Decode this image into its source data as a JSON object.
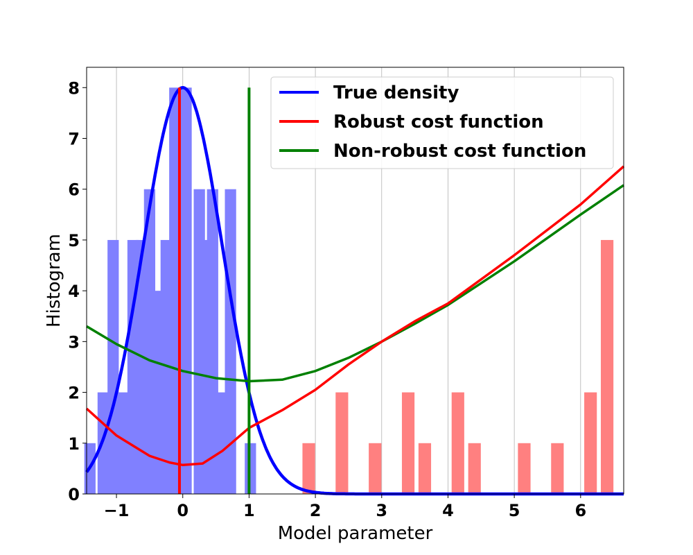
{
  "chart_data": {
    "type": "bar",
    "title": "",
    "xlabel": "Model parameter",
    "ylabel": "Histogram",
    "xlim": [
      -1.45,
      6.65
    ],
    "ylim": [
      0,
      8.4
    ],
    "xticks": [
      -1,
      0,
      1,
      2,
      3,
      4,
      5,
      6
    ],
    "xtick_labels": [
      "−1",
      "0",
      "1",
      "2",
      "3",
      "4",
      "5",
      "6"
    ],
    "yticks": [
      0,
      1,
      2,
      3,
      4,
      5,
      6,
      7,
      8
    ],
    "ytick_labels": [
      "0",
      "1",
      "2",
      "3",
      "4",
      "5",
      "6",
      "7",
      "8"
    ],
    "grid": "vertical",
    "legend_position": "top-right",
    "colors": {
      "inlier_bars": "#8080ff",
      "outlier_bars": "#ff8080",
      "true_density": "#0000ff",
      "robust": "#ff0000",
      "nonrobust": "#008000"
    },
    "histogram_inliers": {
      "bar_width": 0.17,
      "x": [
        -1.4,
        -1.2,
        -1.05,
        -0.9,
        -0.75,
        -0.62,
        -0.5,
        -0.37,
        -0.25,
        -0.12,
        -0.02,
        0.05,
        0.25,
        0.3,
        0.45,
        0.6,
        0.72,
        1.02
      ],
      "values": [
        1,
        2,
        5,
        2,
        5,
        5,
        6,
        4,
        5,
        8,
        6,
        8,
        6,
        5,
        6,
        2,
        6,
        1
      ]
    },
    "histogram_outliers": {
      "bar_width": 0.19,
      "x": [
        1.9,
        2.4,
        2.9,
        3.4,
        3.65,
        4.15,
        4.4,
        5.15,
        5.65,
        6.15,
        6.4
      ],
      "values": [
        1,
        2,
        1,
        2,
        1,
        2,
        1,
        1,
        1,
        2,
        5
      ]
    },
    "true_density": {
      "mean": 0,
      "sigma": 0.6,
      "peak": 8
    },
    "robust_cost": {
      "x": [
        -1.45,
        -1.0,
        -0.5,
        -0.2,
        0.0,
        0.3,
        0.6,
        1.0,
        1.5,
        2.0,
        2.5,
        3.0,
        3.5,
        4.0,
        5.0,
        6.0,
        6.65
      ],
      "y": [
        1.68,
        1.15,
        0.75,
        0.62,
        0.57,
        0.6,
        0.85,
        1.3,
        1.65,
        2.05,
        2.55,
        3.0,
        3.4,
        3.75,
        4.7,
        5.7,
        6.45
      ]
    },
    "nonrobust_cost": {
      "x": [
        -1.45,
        -1.0,
        -0.5,
        0.0,
        0.5,
        1.0,
        1.5,
        2.0,
        2.5,
        3.0,
        3.5,
        4.0,
        5.0,
        6.0,
        6.65
      ],
      "y": [
        3.3,
        2.95,
        2.63,
        2.42,
        2.28,
        2.22,
        2.25,
        2.42,
        2.68,
        3.0,
        3.35,
        3.72,
        4.58,
        5.5,
        6.08
      ]
    },
    "vertical_lines": [
      {
        "x": -0.05,
        "y0": 0,
        "y1": 8,
        "color": "#ff0000"
      },
      {
        "x": 1.0,
        "y0": 0,
        "y1": 8,
        "color": "#008000"
      }
    ],
    "legend": [
      {
        "label": "True density",
        "color": "#0000ff"
      },
      {
        "label": "Robust cost function",
        "color": "#ff0000"
      },
      {
        "label": "Non-robust cost function",
        "color": "#008000"
      }
    ]
  }
}
